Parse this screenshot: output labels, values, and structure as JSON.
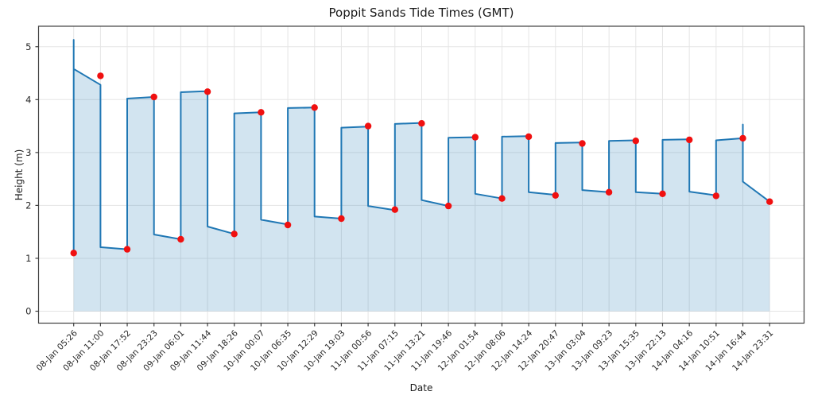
{
  "chart_data": {
    "type": "line",
    "title": "Poppit Sands Tide Times (GMT)",
    "xlabel": "Date",
    "ylabel": "Height (m)",
    "grid": true,
    "legend": "none",
    "yticks": [
      0,
      1,
      2,
      3,
      4,
      5
    ],
    "ylim": [
      -0.23,
      5.39
    ],
    "xlim": [
      -1.33,
      27.33
    ],
    "categories": [
      "08-Jan 05:26",
      "08-Jan 11:00",
      "08-Jan 17:52",
      "08-Jan 23:23",
      "09-Jan 06:01",
      "09-Jan 11:44",
      "09-Jan 18:26",
      "10-Jan 00:07",
      "10-Jan 06:35",
      "10-Jan 12:29",
      "10-Jan 19:03",
      "11-Jan 00:56",
      "11-Jan 07:15",
      "11-Jan 13:21",
      "11-Jan 19:46",
      "12-Jan 01:54",
      "12-Jan 08:06",
      "12-Jan 14:24",
      "12-Jan 20:47",
      "13-Jan 03:04",
      "13-Jan 09:23",
      "13-Jan 15:35",
      "13-Jan 22:13",
      "14-Jan 04:16",
      "14-Jan 10:51",
      "14-Jan 16:44",
      "14-Jan 23:31"
    ],
    "series": [
      {
        "name": "tide-height-markers",
        "style": "scatter",
        "values": [
          1.1,
          4.45,
          1.17,
          4.05,
          1.36,
          4.15,
          1.46,
          3.76,
          1.63,
          3.85,
          1.75,
          3.5,
          1.92,
          3.55,
          1.99,
          3.29,
          2.13,
          3.3,
          2.19,
          3.17,
          2.25,
          3.22,
          2.22,
          3.24,
          2.18,
          3.27,
          2.07
        ]
      },
      {
        "name": "tide-curve",
        "style": "line-with-area-fill",
        "vertices": [
          [
            0,
            1.1
          ],
          [
            0,
            5.13
          ],
          [
            0,
            4.58
          ],
          [
            1,
            4.28
          ],
          [
            1,
            1.21
          ],
          [
            2,
            1.17
          ],
          [
            2,
            4.02
          ],
          [
            3,
            4.05
          ],
          [
            3,
            1.45
          ],
          [
            4,
            1.36
          ],
          [
            4,
            4.14
          ],
          [
            5,
            4.16
          ],
          [
            5,
            1.6
          ],
          [
            6,
            1.46
          ],
          [
            6,
            3.74
          ],
          [
            7,
            3.76
          ],
          [
            7,
            1.73
          ],
          [
            8,
            1.64
          ],
          [
            8,
            3.84
          ],
          [
            9,
            3.85
          ],
          [
            9,
            1.79
          ],
          [
            10,
            1.75
          ],
          [
            10,
            3.47
          ],
          [
            11,
            3.49
          ],
          [
            11,
            1.99
          ],
          [
            12,
            1.91
          ],
          [
            12,
            3.54
          ],
          [
            13,
            3.56
          ],
          [
            13,
            2.1
          ],
          [
            14,
            1.99
          ],
          [
            14,
            3.28
          ],
          [
            15,
            3.29
          ],
          [
            15,
            2.22
          ],
          [
            16,
            2.13
          ],
          [
            16,
            3.3
          ],
          [
            17,
            3.31
          ],
          [
            17,
            2.25
          ],
          [
            18,
            2.2
          ],
          [
            18,
            3.18
          ],
          [
            19,
            3.19
          ],
          [
            19,
            2.29
          ],
          [
            20,
            2.25
          ],
          [
            20,
            3.22
          ],
          [
            21,
            3.23
          ],
          [
            21,
            2.25
          ],
          [
            22,
            2.22
          ],
          [
            22,
            3.24
          ],
          [
            23,
            3.25
          ],
          [
            23,
            2.26
          ],
          [
            24,
            2.19
          ],
          [
            24,
            3.23
          ],
          [
            25,
            3.27
          ],
          [
            25,
            3.53
          ],
          [
            25,
            2.45
          ],
          [
            26,
            2.07
          ]
        ]
      }
    ],
    "colors": {
      "line": "#1f77b4",
      "fill": "rgba(31,119,180,0.2)",
      "marker": "#f01010",
      "grid": "#e5e5e5",
      "spine": "#3f3f3f",
      "text": "#262626"
    }
  }
}
